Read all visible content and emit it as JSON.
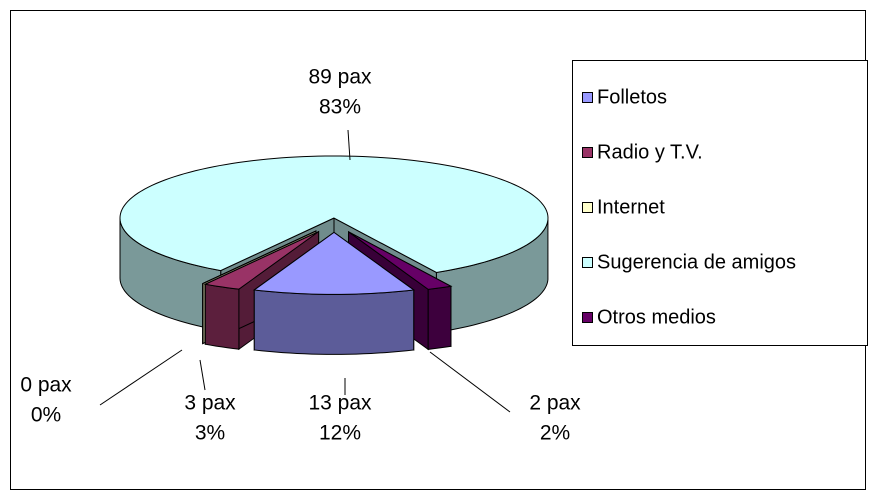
{
  "chart_data": {
    "type": "pie3d",
    "categories": [
      "Folletos",
      "Radio y T.V.",
      "Internet",
      "Sugerencia de amigos",
      "Otros medios"
    ],
    "values": [
      13,
      3,
      0,
      89,
      2
    ],
    "value_labels": [
      "13 pax",
      "3 pax",
      "0 pax",
      "89 pax",
      "2 pax"
    ],
    "percentages": [
      12,
      3,
      0,
      83,
      2
    ],
    "percentage_labels": [
      "12%",
      "3%",
      "0%",
      "83%",
      "2%"
    ],
    "colors": [
      "#9999ff",
      "#993366",
      "#ffffcc",
      "#ccffff",
      "#660066"
    ],
    "legend": "right"
  }
}
